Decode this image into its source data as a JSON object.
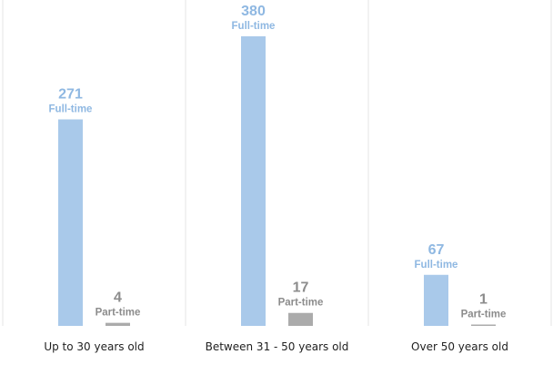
{
  "chart_data": {
    "type": "bar",
    "categories": [
      "Up to 30 years old",
      "Between 31 - 50 years old",
      "Over 50 years old"
    ],
    "series": [
      {
        "name": "Full-time",
        "values": [
          271,
          380,
          67
        ],
        "color": "#a9c9ea"
      },
      {
        "name": "Part-time",
        "values": [
          4,
          17,
          1
        ],
        "color": "#ababab"
      }
    ],
    "title": "",
    "xlabel": "",
    "ylabel": "",
    "ylim": [
      0,
      380
    ],
    "grid": false,
    "legend": "none",
    "data_labels": true
  }
}
